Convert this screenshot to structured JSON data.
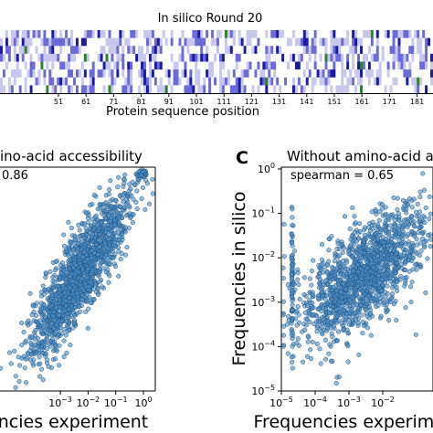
{
  "chart_data": [
    {
      "type": "heatmap",
      "title": "In silico Round 20",
      "xlabel": "Protein sequence position",
      "x_ticks": [
        "51",
        "61",
        "71",
        "81",
        "91",
        "101",
        "111",
        "121",
        "131",
        "141",
        "151",
        "161",
        "171",
        "181"
      ],
      "colormap": [
        "#ffffff",
        "#c8c8ee",
        "#6a6ad8",
        "#1a1aa8"
      ],
      "highlight_color": "#2f7f2f"
    },
    {
      "type": "scatter",
      "title": "ino-acid accessibility",
      "annotation": "0.86",
      "xlabel": "ncies experiment",
      "x_scale": "log",
      "y_scale": "log",
      "xlim": [
        1e-05,
        1
      ],
      "x_ticks": [
        {
          "label": "10",
          "sup": "−3",
          "value": 0.001
        },
        {
          "label": "10",
          "sup": "−2",
          "value": 0.01
        },
        {
          "label": "10",
          "sup": "−1",
          "value": 0.1
        },
        {
          "label": "10",
          "sup": "0",
          "value": 1
        }
      ],
      "point_color": "#4a8fc8",
      "edge_color": "#1f4f7f"
    },
    {
      "type": "scatter",
      "panel_letter": "C",
      "title": "Without amino-acid a",
      "annotation": "spearman = 0.65",
      "xlabel": "Frequencies experiment",
      "ylabel": "Frequencies in silico",
      "x_scale": "log",
      "y_scale": "log",
      "xlim": [
        1e-05,
        1
      ],
      "ylim": [
        1e-05,
        1
      ],
      "x_ticks": [
        {
          "label": "10",
          "sup": "−5",
          "value": 1e-05
        },
        {
          "label": "10",
          "sup": "−4",
          "value": 0.0001
        },
        {
          "label": "10",
          "sup": "−3",
          "value": 0.001
        },
        {
          "label": "10",
          "sup": "−2",
          "value": 0.01
        }
      ],
      "y_ticks": [
        {
          "label": "10",
          "sup": "0",
          "value": 1
        },
        {
          "label": "10",
          "sup": "−1",
          "value": 0.1
        },
        {
          "label": "10",
          "sup": "−2",
          "value": 0.01
        },
        {
          "label": "10",
          "sup": "−3",
          "value": 0.001
        },
        {
          "label": "10",
          "sup": "−4",
          "value": 0.0001
        },
        {
          "label": "10",
          "sup": "−5",
          "value": 1e-05
        }
      ],
      "point_color": "#4a8fc8",
      "edge_color": "#1f4f7f"
    }
  ]
}
